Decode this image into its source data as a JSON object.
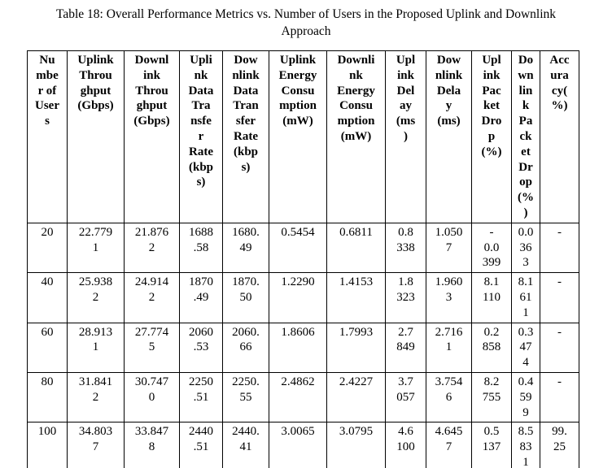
{
  "caption": "Table 18: Overall Performance Metrics vs. Number of Users in the Proposed Uplink and Downlink\nApproach",
  "table": {
    "headers": [
      "Nu\nmbe\nr of\nUser\ns",
      "Uplink\nThrou\nghput\n(Gbps)",
      "Downl\nink\nThrou\nghput\n(Gbps)",
      "Upli\nnk\nData\nTra\nnsfe\nr\nRate\n(kbp\ns)",
      "Dow\nnlink\nData\nTran\nsfer\nRate\n(kbp\ns)",
      "Uplink\nEnergy\nConsu\nmption\n(mW)",
      "Downli\nnk\nEnergy\nConsu\nmption\n(mW)",
      "Upl\nink\nDel\nay\n(ms\n)",
      "Dow\nnlink\nDela\ny\n(ms)",
      "Upl\nink\nPac\nket\nDro\np\n(%)",
      "Do\nwn\nlin\nk\nPa\nck\net\nDr\nop\n(%\n)",
      "Acc\nura\ncy(\n%)"
    ],
    "rows": [
      [
        "20",
        "22.779\n1",
        "21.876\n2",
        "1688\n.58",
        "1680.\n49",
        "0.5454",
        "0.6811",
        "0.8\n338",
        "1.050\n7",
        "-\n0.0\n399",
        "0.0\n36\n3",
        "-"
      ],
      [
        "40",
        "25.938\n2",
        "24.914\n2",
        "1870\n.49",
        "1870.\n50",
        "1.2290",
        "1.4153",
        "1.8\n323",
        "1.960\n3",
        "8.1\n110",
        "8.1\n61\n1",
        "-"
      ],
      [
        "60",
        "28.913\n1",
        "27.774\n5",
        "2060\n.53",
        "2060.\n66",
        "1.8606",
        "1.7993",
        "2.7\n849",
        "2.716\n1",
        "0.2\n858",
        "0.3\n47\n4",
        "-"
      ],
      [
        "80",
        "31.841\n2",
        "30.747\n0",
        "2250\n.51",
        "2250.\n55",
        "2.4862",
        "2.4227",
        "3.7\n057",
        "3.754\n6",
        "8.2\n755",
        "0.4\n59\n9",
        "-"
      ],
      [
        "100",
        "34.803\n7",
        "33.847\n8",
        "2440\n.51",
        "2440.\n41",
        "3.0065",
        "3.0795",
        "4.6\n100",
        "4.645\n7",
        "0.5\n137",
        "8.5\n83\n1",
        "99.\n25"
      ]
    ]
  }
}
